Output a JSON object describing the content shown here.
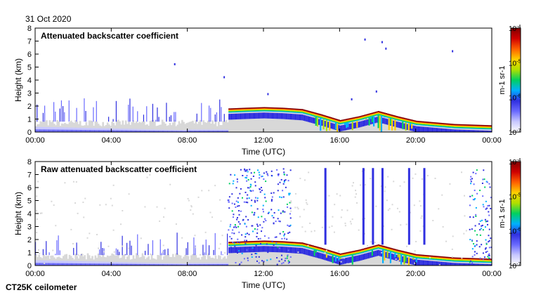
{
  "date": "31 Oct 2020",
  "instrument": "CT25K ceilometer",
  "colors": {
    "clear": "#d8d8d8",
    "low": [
      "#c8c8ff",
      "#6a6aff",
      "#3030e0"
    ],
    "mid": [
      "#00b0ff",
      "#00d060",
      "#b0e000"
    ],
    "high": [
      "#ffd000",
      "#ff6000",
      "#d00000"
    ],
    "peak": "#800000"
  },
  "chart_data": [
    {
      "type": "heatmap",
      "title": "Attenuated backscatter coefficient",
      "xlabel": "Time (UTC)",
      "ylabel": "Height (km)",
      "xlim": [
        0,
        24
      ],
      "ylim": [
        0,
        8
      ],
      "x_ticks": [
        "00:00",
        "04:00",
        "08:00",
        "12:00",
        "16:00",
        "20:00",
        "00:00"
      ],
      "y_ticks": [
        "0",
        "1",
        "2",
        "3",
        "4",
        "5",
        "6",
        "7",
        "8"
      ],
      "colorbar": {
        "label": "m-1 sr-1",
        "scale": "log",
        "ticks": [
          "10^-7",
          "10^-6",
          "10^-5",
          "10^-4"
        ]
      },
      "features": {
        "cloud_base_km": [
          {
            "t": 10.2,
            "h": 1.5
          },
          {
            "t": 11.0,
            "h": 1.55
          },
          {
            "t": 12.0,
            "h": 1.6
          },
          {
            "t": 13.0,
            "h": 1.55
          },
          {
            "t": 14.0,
            "h": 1.45
          },
          {
            "t": 15.0,
            "h": 1.05
          },
          {
            "t": 16.0,
            "h": 0.6
          },
          {
            "t": 17.0,
            "h": 0.9
          },
          {
            "t": 18.0,
            "h": 1.3
          },
          {
            "t": 19.0,
            "h": 0.9
          },
          {
            "t": 20.0,
            "h": 0.55
          },
          {
            "t": 22.0,
            "h": 0.3
          },
          {
            "t": 24.0,
            "h": 0.2
          }
        ],
        "surface_layer_top_km": 0.35,
        "sparse_upper_echoes_km": [
          7.2,
          7.0,
          6.5,
          4.3,
          1.3,
          1.0
        ]
      }
    },
    {
      "type": "heatmap",
      "title": "Raw attenuated backscatter coefficient",
      "xlabel": "Time (UTC)",
      "ylabel": "Height (km)",
      "xlim": [
        0,
        24
      ],
      "ylim": [
        0,
        8
      ],
      "x_ticks": [
        "00:00",
        "04:00",
        "08:00",
        "12:00",
        "16:00",
        "20:00",
        "00:00"
      ],
      "y_ticks": [
        "0",
        "1",
        "2",
        "3",
        "4",
        "5",
        "6",
        "7",
        "8"
      ],
      "colorbar": {
        "label": "m-1 sr-1",
        "scale": "log",
        "ticks": [
          "10^-7",
          "10^-6",
          "10^-5",
          "10^-4"
        ]
      },
      "features": {
        "noise_bands_hours": [
          [
            10.1,
            13.4
          ],
          [
            22.8,
            24.0
          ]
        ],
        "vertical_streaks_hours": [
          15.2,
          17.2,
          17.7,
          18.2,
          19.6,
          20.4
        ],
        "cloud_base_km_same_as_above": true
      }
    }
  ]
}
